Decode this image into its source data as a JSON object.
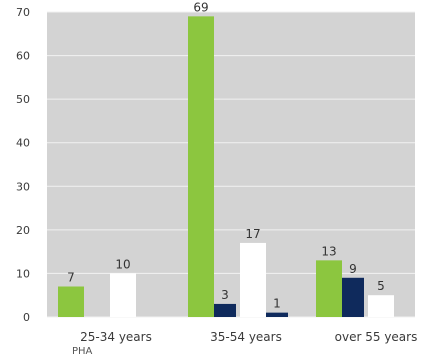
{
  "chart_data": {
    "type": "bar",
    "categories": [
      "25-34 years",
      "35-54 years",
      "over 55 years"
    ],
    "series": [
      {
        "color": "#8cc63f",
        "values": [
          7,
          69,
          13
        ]
      },
      {
        "color": "#0f2a5c",
        "values": [
          null,
          3,
          9
        ]
      },
      {
        "color": "#ffffff",
        "values": [
          10,
          17,
          5
        ]
      },
      {
        "color": "#0f2a5c",
        "values": [
          null,
          1,
          null
        ]
      }
    ],
    "data_labels": [
      [
        "7",
        "",
        "10",
        ""
      ],
      [
        "69",
        "3",
        "17",
        "1"
      ],
      [
        "13",
        "9",
        "5",
        ""
      ]
    ],
    "ylim": [
      0,
      70
    ],
    "yticks": [
      0,
      10,
      20,
      30,
      40,
      50,
      60,
      70
    ],
    "grid": true,
    "plot_background": "#d3d3d3",
    "annotation": "PHA"
  }
}
